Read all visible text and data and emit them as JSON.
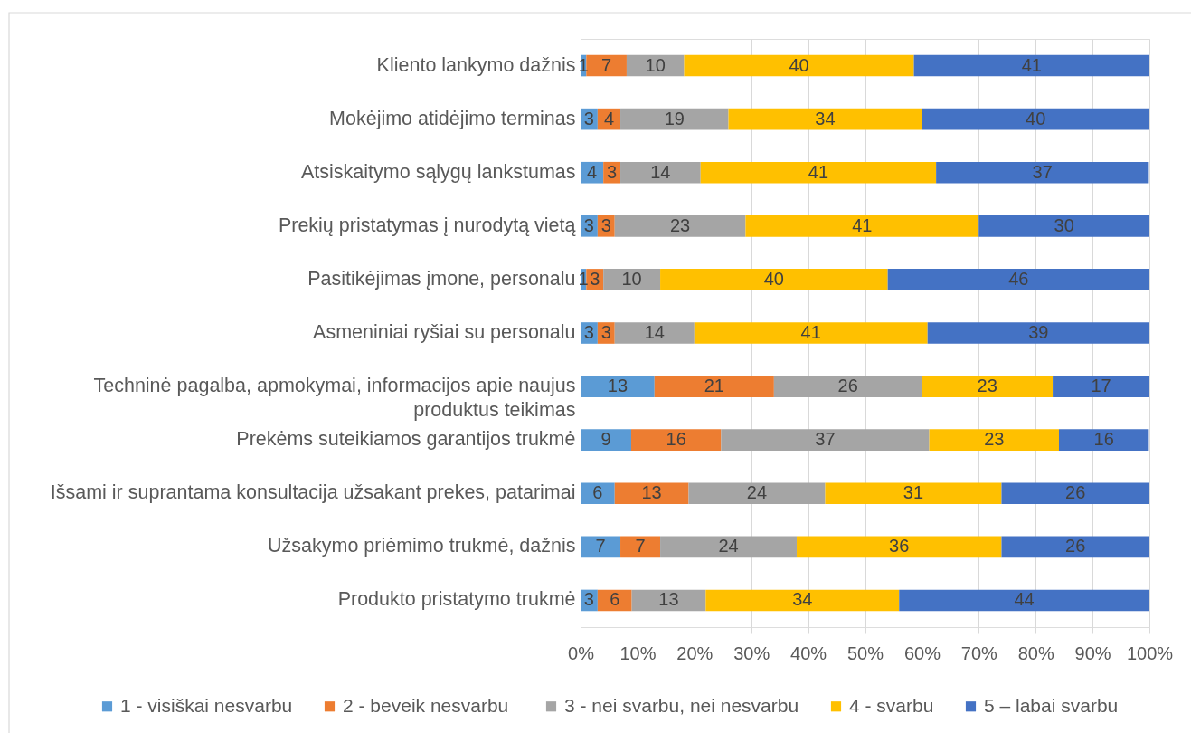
{
  "chart_data": {
    "type": "bar",
    "orientation": "horizontal",
    "stacked": true,
    "categories": [
      "Kliento lankymo dažnis",
      "Mokėjimo atidėjimo terminas",
      "Atsiskaitymo sąlygų lankstumas",
      "Prekių pristatymas į nurodytą vietą",
      "Pasitikėjimas įmone, personalu",
      "Asmeniniai ryšiai su personalu",
      "Techninė pagalba, apmokymai, informacijos apie naujus produktus teikimas",
      "Prekėms suteikiamos garantijos trukmė ",
      "Išsami ir suprantama konsultacija užsakant prekes, patarimai",
      "Užsakymo priėmimo trukmė, dažnis",
      "Produkto pristatymo trukmė"
    ],
    "series": [
      {
        "name": "1 - visiškai nesvarbu",
        "color": "#5b9bd5",
        "values": [
          1.0,
          3,
          4.0,
          3,
          1,
          3,
          13,
          8.9,
          6,
          7,
          3
        ],
        "value_labels": [
          "1",
          "3",
          "4",
          "3",
          "1",
          "3",
          "13",
          "9",
          "6",
          "7",
          "3"
        ]
      },
      {
        "name": "2 -  beveik nesvarbu",
        "color": "#ed7d31",
        "values": [
          7.1,
          4,
          3.0,
          3,
          3,
          3,
          21,
          15.8,
          13,
          7,
          6
        ],
        "value_labels": [
          "7",
          "4",
          "3",
          "3",
          "3",
          "3",
          "21",
          "16",
          "13",
          "7",
          "6"
        ]
      },
      {
        "name": "3 - nei svarbu, nei nesvarbu",
        "color": "#a5a5a5",
        "values": [
          10.1,
          19,
          14.1,
          23,
          10,
          14,
          26,
          36.6,
          24,
          24,
          13
        ],
        "value_labels": [
          "10",
          "19",
          "14",
          "23",
          "10",
          "14",
          "26",
          "37",
          "24",
          "24",
          "13"
        ]
      },
      {
        "name": "4 - svarbu",
        "color": "#ffc000",
        "values": [
          40.4,
          34,
          41.4,
          41,
          40,
          41,
          23,
          22.8,
          31,
          36,
          34
        ],
        "value_labels": [
          "40",
          "34",
          "41",
          "41",
          "40",
          "41",
          "23",
          "23",
          "31",
          "36",
          "34"
        ]
      },
      {
        "name": "5 – labai svarbu",
        "color": "#4472c4",
        "values": [
          41.4,
          40,
          37.4,
          30,
          46,
          39,
          17,
          15.8,
          26,
          26,
          44
        ],
        "value_labels": [
          "41",
          "40",
          "37",
          "30",
          "46",
          "39",
          "17",
          "16",
          "26",
          "26",
          "44"
        ]
      }
    ],
    "xlim": [
      0,
      100
    ],
    "xticks": [
      {
        "value": 0,
        "label": "0%"
      },
      {
        "value": 10,
        "label": "10%"
      },
      {
        "value": 20,
        "label": "20%"
      },
      {
        "value": 30,
        "label": "30%"
      },
      {
        "value": 40,
        "label": "40%"
      },
      {
        "value": 50,
        "label": "50%"
      },
      {
        "value": 60,
        "label": "60%"
      },
      {
        "value": 70,
        "label": "70%"
      },
      {
        "value": 80,
        "label": "80%"
      },
      {
        "value": 90,
        "label": "90%"
      },
      {
        "value": 100,
        "label": "100%"
      }
    ],
    "grid": "x",
    "legend": "bottom"
  }
}
